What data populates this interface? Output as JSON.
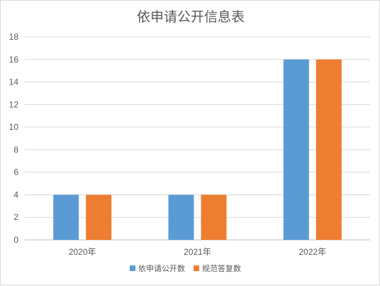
{
  "chart_data": {
    "type": "bar",
    "title": "依申请公开信息表",
    "categories": [
      "2020年",
      "2021年",
      "2022年"
    ],
    "series": [
      {
        "name": "依申请公开数",
        "values": [
          4,
          4,
          16
        ],
        "color": "#5b9bd5"
      },
      {
        "name": "规范答复数",
        "values": [
          4,
          4,
          16
        ],
        "color": "#ed7d31"
      }
    ],
    "ylim": [
      0,
      18
    ],
    "yticks": [
      0,
      2,
      4,
      6,
      8,
      10,
      12,
      14,
      16,
      18
    ],
    "grid": true,
    "legend_position": "bottom"
  }
}
